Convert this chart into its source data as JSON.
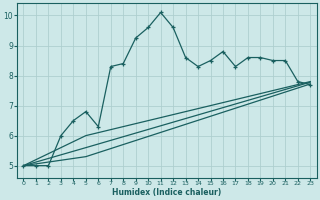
{
  "xlabel": "Humidex (Indice chaleur)",
  "background_color": "#cde8e8",
  "grid_color": "#aecfcf",
  "line_color": "#1a6060",
  "xlim": [
    -0.5,
    23.5
  ],
  "ylim": [
    4.6,
    10.4
  ],
  "xticks": [
    0,
    1,
    2,
    3,
    4,
    5,
    6,
    7,
    8,
    9,
    10,
    11,
    12,
    13,
    14,
    15,
    16,
    17,
    18,
    19,
    20,
    21,
    22,
    23
  ],
  "yticks": [
    5,
    6,
    7,
    8,
    9,
    10
  ],
  "series1_x": [
    0,
    1,
    2,
    3,
    4,
    5,
    6,
    7,
    8,
    9,
    10,
    11,
    12,
    13,
    14,
    15,
    16,
    17,
    18,
    19,
    20,
    21,
    22,
    23
  ],
  "series1_y": [
    5.0,
    5.0,
    5.0,
    6.0,
    6.5,
    6.8,
    6.3,
    8.3,
    8.4,
    9.25,
    9.6,
    10.1,
    9.6,
    8.6,
    8.3,
    8.5,
    8.8,
    8.3,
    8.6,
    8.6,
    8.5,
    8.5,
    7.8,
    7.7
  ],
  "series2_x": [
    0,
    5,
    23
  ],
  "series2_y": [
    5.0,
    6.0,
    7.8
  ],
  "series3_x": [
    0,
    5,
    23
  ],
  "series3_y": [
    5.0,
    5.6,
    7.78
  ],
  "series4_x": [
    0,
    5,
    23
  ],
  "series4_y": [
    5.0,
    5.3,
    7.72
  ]
}
